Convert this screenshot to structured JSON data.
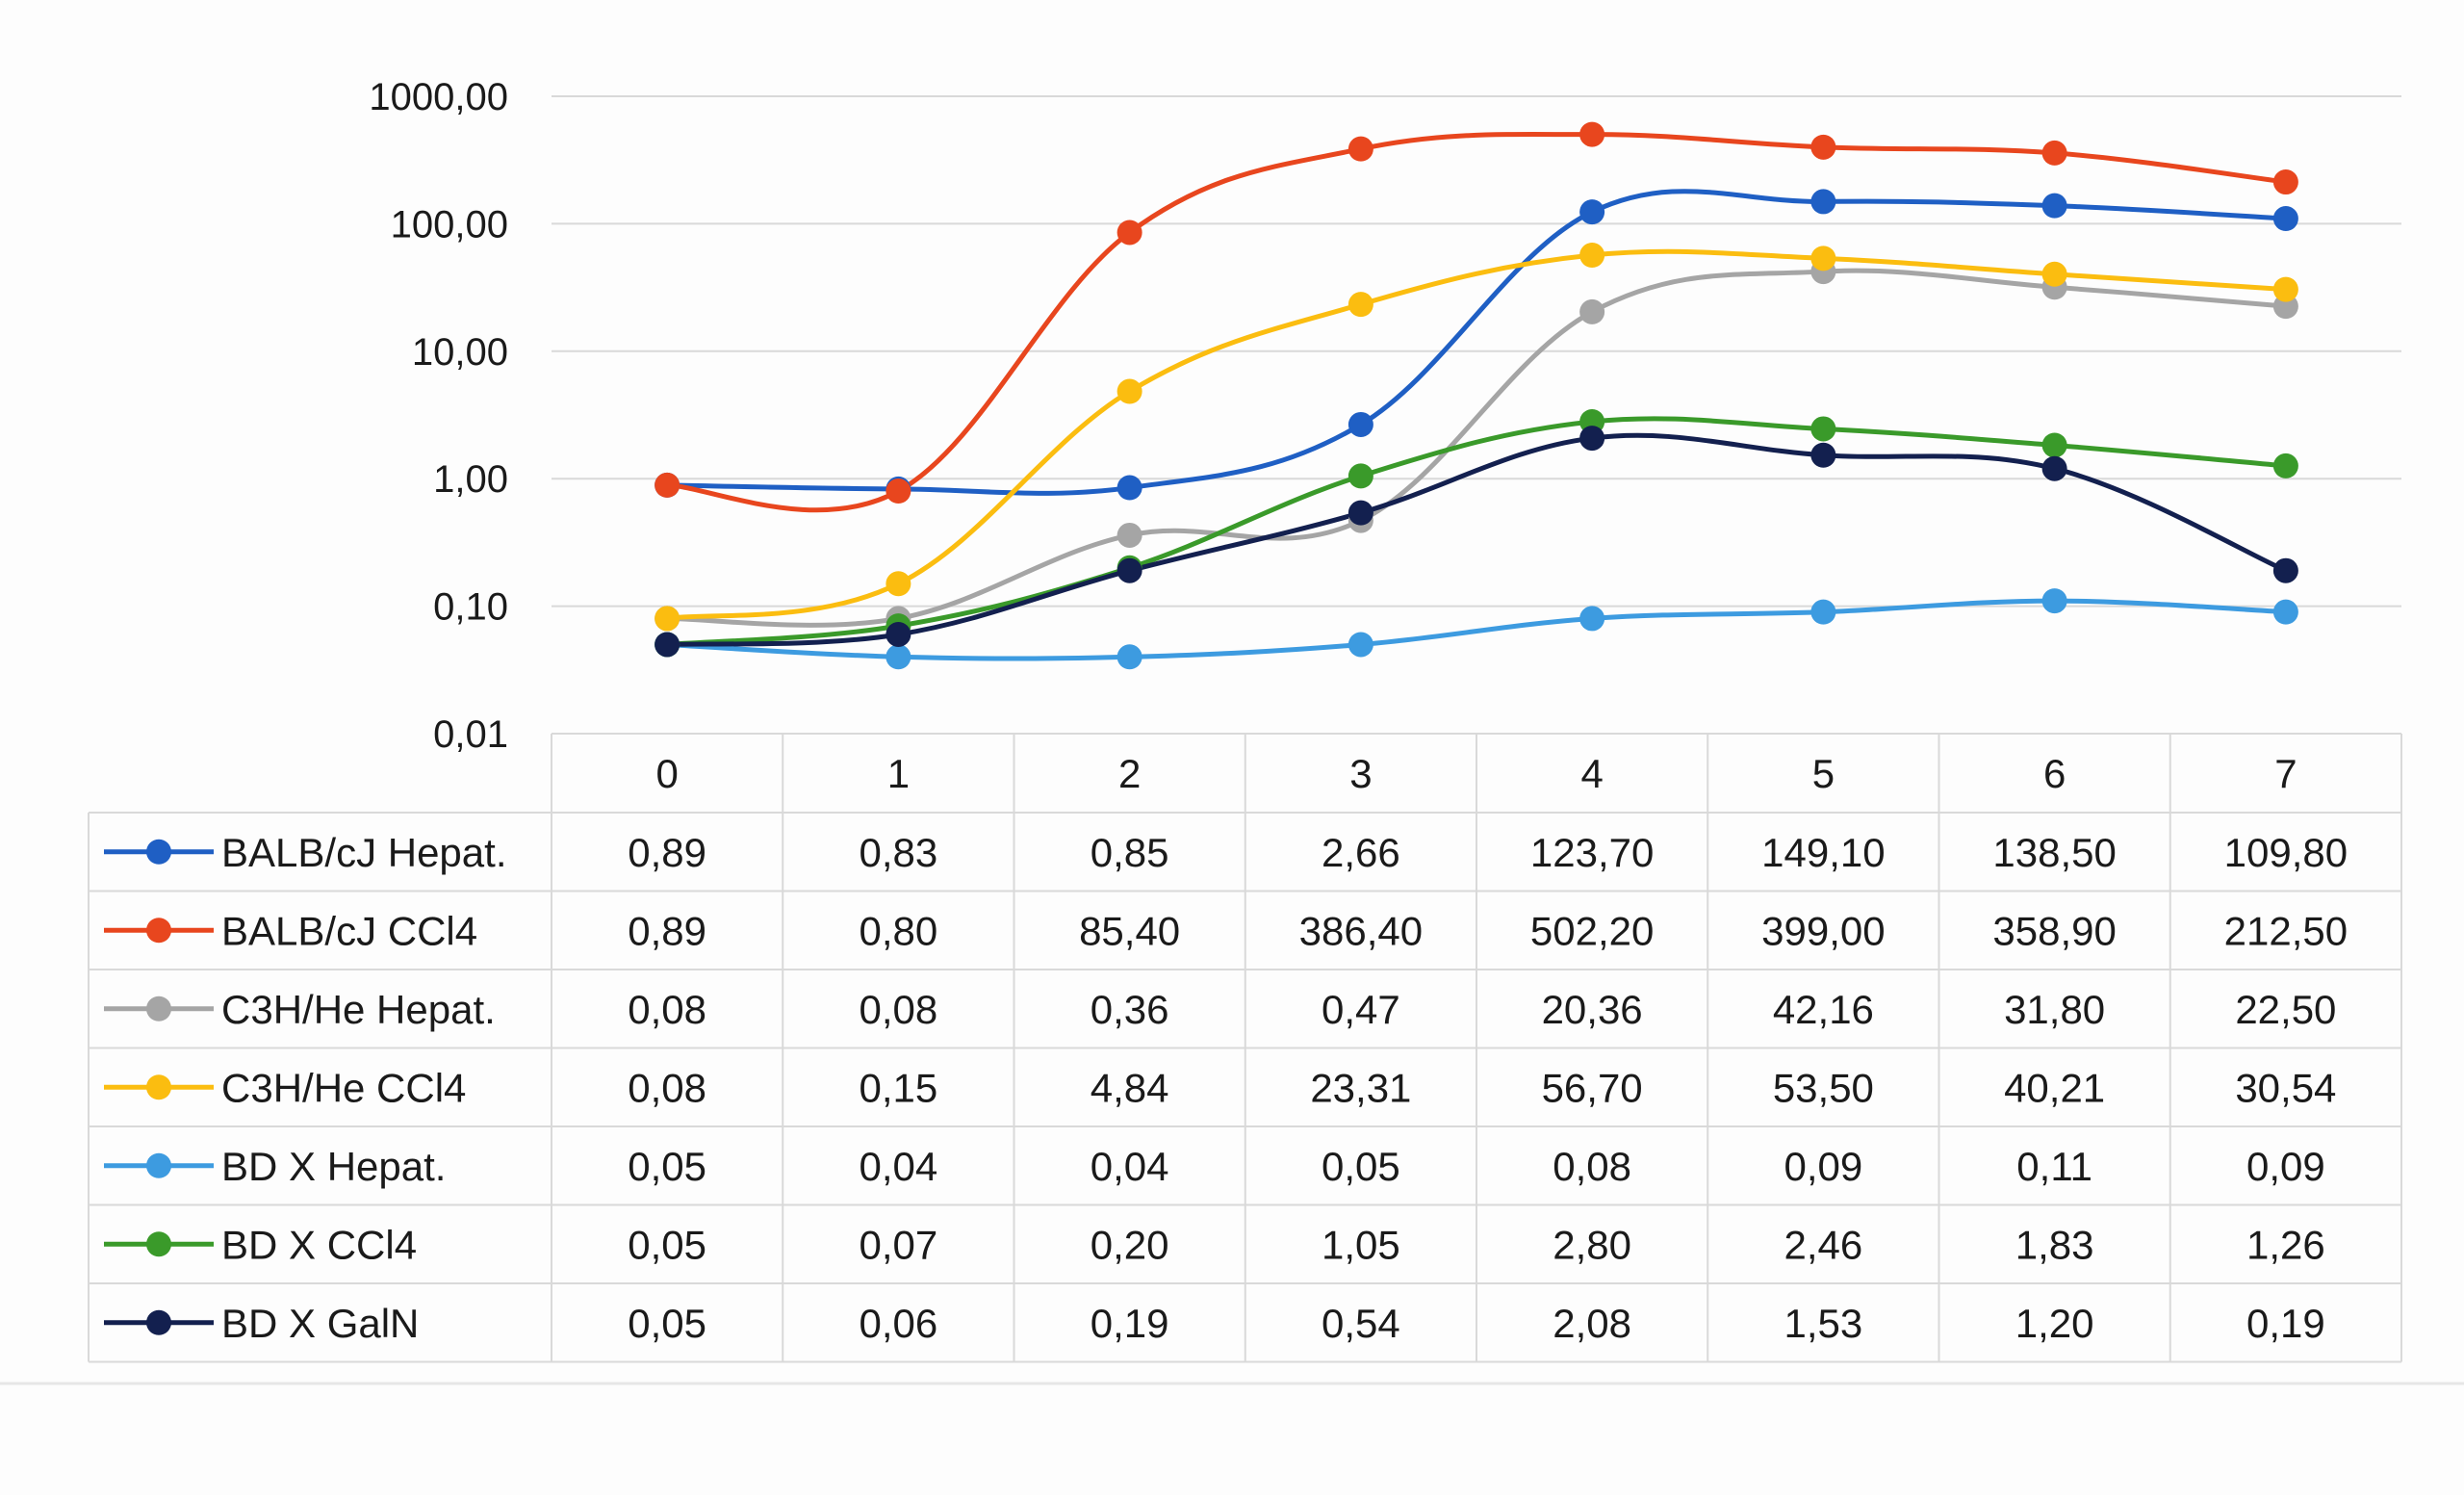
{
  "chart_data": {
    "type": "line",
    "title": "",
    "xlabel": "",
    "ylabel": "",
    "y_scale": "log",
    "ylim": [
      0.01,
      1000
    ],
    "y_tick_values": [
      0.01,
      0.1,
      1,
      10,
      100,
      1000
    ],
    "y_tick_labels": [
      "0,01",
      "0,10",
      "1,00",
      "10,00",
      "100,00",
      "1000,00"
    ],
    "grid": true,
    "legend_placement": "data-table-below",
    "categories": [
      "0",
      "1",
      "2",
      "3",
      "4",
      "5",
      "6",
      "7"
    ],
    "series": [
      {
        "name": "BALB/cJ  Hepat.",
        "color": "#1f5fc4",
        "values": [
          0.89,
          0.83,
          0.85,
          2.66,
          123.7,
          149.1,
          138.5,
          109.8
        ],
        "labels": [
          "0,89",
          "0,83",
          "0,85",
          "2,66",
          "123,70",
          "149,10",
          "138,50",
          "109,80"
        ]
      },
      {
        "name": "BALB/cJ  CCl4",
        "color": "#e8461e",
        "values": [
          0.89,
          0.8,
          85.4,
          386.4,
          502.2,
          399.0,
          358.9,
          212.5
        ],
        "labels": [
          "0,89",
          "0,80",
          "85,40",
          "386,40",
          "502,20",
          "399,00",
          "358,90",
          "212,50"
        ]
      },
      {
        "name": "C3H/He Hepat.",
        "color": "#a5a5a5",
        "values": [
          0.08,
          0.08,
          0.36,
          0.47,
          20.36,
          42.16,
          31.8,
          22.5
        ],
        "labels": [
          "0,08",
          "0,08",
          "0,36",
          "0,47",
          "20,36",
          "42,16",
          "31,80",
          "22,50"
        ]
      },
      {
        "name": "C3H/He CCl4",
        "color": "#fbbd10",
        "values": [
          0.08,
          0.15,
          4.84,
          23.31,
          56.7,
          53.5,
          40.21,
          30.54
        ],
        "labels": [
          "0,08",
          "0,15",
          "4,84",
          "23,31",
          "56,70",
          "53,50",
          "40,21",
          "30,54"
        ]
      },
      {
        "name": "BD X Hepat.",
        "color": "#3d9be0",
        "values": [
          0.05,
          0.04,
          0.04,
          0.05,
          0.08,
          0.09,
          0.11,
          0.09
        ],
        "labels": [
          "0,05",
          "0,04",
          "0,04",
          "0,05",
          "0,08",
          "0,09",
          "0,11",
          "0,09"
        ]
      },
      {
        "name": "BD X CCl4",
        "color": "#3a9a2a",
        "values": [
          0.05,
          0.07,
          0.2,
          1.05,
          2.8,
          2.46,
          1.83,
          1.26
        ],
        "labels": [
          "0,05",
          "0,07",
          "0,20",
          "1,05",
          "2,80",
          "2,46",
          "1,83",
          "1,26"
        ]
      },
      {
        "name": "BD X GalN",
        "color": "#13204f",
        "values": [
          0.05,
          0.06,
          0.19,
          0.54,
          2.08,
          1.53,
          1.2,
          0.19
        ],
        "labels": [
          "0,05",
          "0,06",
          "0,19",
          "0,54",
          "2,08",
          "1,53",
          "1,20",
          "0,19"
        ]
      }
    ]
  }
}
